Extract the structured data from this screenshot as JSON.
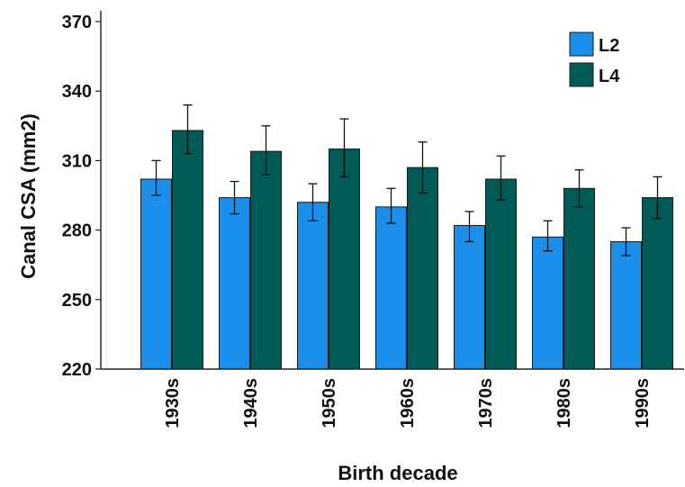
{
  "chart_data": {
    "type": "bar",
    "xlabel": "Birth decade",
    "ylabel": "Canal CSA (mm2)",
    "ylim": [
      220,
      370
    ],
    "yticks": [
      220,
      250,
      280,
      310,
      340,
      370
    ],
    "categories": [
      "1930s",
      "1940s",
      "1950s",
      "1960s",
      "1970s",
      "1980s",
      "1990s"
    ],
    "series": [
      {
        "name": "L2",
        "color": "#1a8ee8",
        "values": [
          302,
          294,
          292,
          290,
          282,
          277,
          275
        ],
        "error_low": [
          295,
          287,
          284,
          283,
          275,
          271,
          269
        ],
        "error_high": [
          310,
          301,
          300,
          298,
          288,
          284,
          281
        ]
      },
      {
        "name": "L4",
        "color": "#005a55",
        "values": [
          323,
          314,
          315,
          307,
          302,
          298,
          294
        ],
        "error_low": [
          313,
          304,
          303,
          296,
          293,
          290,
          285
        ],
        "error_high": [
          334,
          325,
          328,
          318,
          312,
          306,
          303
        ]
      }
    ],
    "legend_position": "top-right",
    "grid": false
  }
}
